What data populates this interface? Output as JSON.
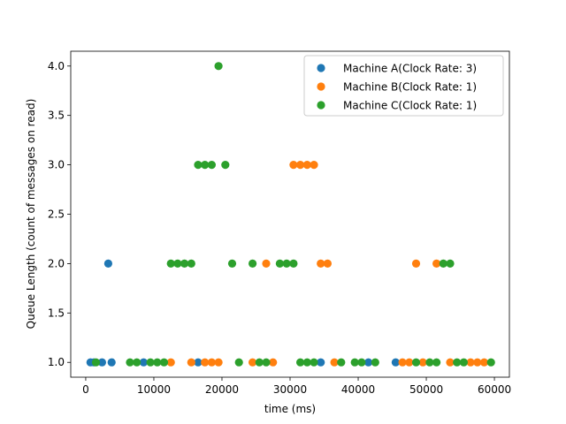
{
  "chart_data": {
    "type": "scatter",
    "title": "",
    "xlabel": "time (ms)",
    "ylabel": "Queue Length (count of messages on read)",
    "xlim": [
      -2200,
      62200
    ],
    "ylim": [
      0.85,
      4.15
    ],
    "xticks": [
      0,
      10000,
      20000,
      30000,
      40000,
      50000,
      60000
    ],
    "xtick_labels": [
      "0",
      "10000",
      "20000",
      "30000",
      "40000",
      "50000",
      "60000"
    ],
    "yticks": [
      1.0,
      1.5,
      2.0,
      2.5,
      3.0,
      3.5,
      4.0
    ],
    "ytick_labels": [
      "1.0",
      "1.5",
      "2.0",
      "2.5",
      "3.0",
      "3.5",
      "4.0"
    ],
    "grid": false,
    "legend_position": "top-right",
    "series": [
      {
        "name": "Machine A(Clock Rate: 3)",
        "color": "#1f77b4",
        "x": [
          700,
          1200,
          2400,
          3300,
          3800,
          8500,
          16500,
          34500,
          41500,
          45500
        ],
        "y": [
          1,
          1,
          1,
          2,
          1,
          1,
          1,
          1,
          1,
          1
        ]
      },
      {
        "name": "Machine B(Clock Rate: 1)",
        "color": "#ff7f0e",
        "x": [
          12500,
          15500,
          17500,
          18500,
          19500,
          24500,
          26500,
          27500,
          30500,
          31500,
          32500,
          33500,
          34500,
          35500,
          36500,
          46500,
          47500,
          48500,
          49500,
          51500,
          53500,
          56500,
          57500,
          58500
        ],
        "y": [
          1,
          1,
          1,
          1,
          1,
          1,
          2,
          1,
          3,
          3,
          3,
          3,
          2,
          2,
          1,
          1,
          1,
          2,
          1,
          2,
          1,
          1,
          1,
          1
        ]
      },
      {
        "name": "Machine C(Clock Rate: 1)",
        "color": "#2ca02c",
        "x": [
          1500,
          6500,
          7500,
          9500,
          10500,
          11500,
          12500,
          13500,
          14500,
          15500,
          16500,
          17500,
          18500,
          19500,
          20500,
          21500,
          22500,
          24500,
          25500,
          26500,
          28500,
          29500,
          30500,
          31500,
          32500,
          33500,
          37500,
          39500,
          40500,
          42500,
          48500,
          50500,
          51500,
          52500,
          53500,
          54500,
          55500,
          59500
        ],
        "y": [
          1,
          1,
          1,
          1,
          1,
          1,
          2,
          2,
          2,
          2,
          3,
          3,
          3,
          4,
          3,
          2,
          1,
          2,
          1,
          1,
          2,
          2,
          2,
          1,
          1,
          1,
          1,
          1,
          1,
          1,
          1,
          1,
          1,
          2,
          2,
          1,
          1,
          1
        ]
      }
    ]
  }
}
